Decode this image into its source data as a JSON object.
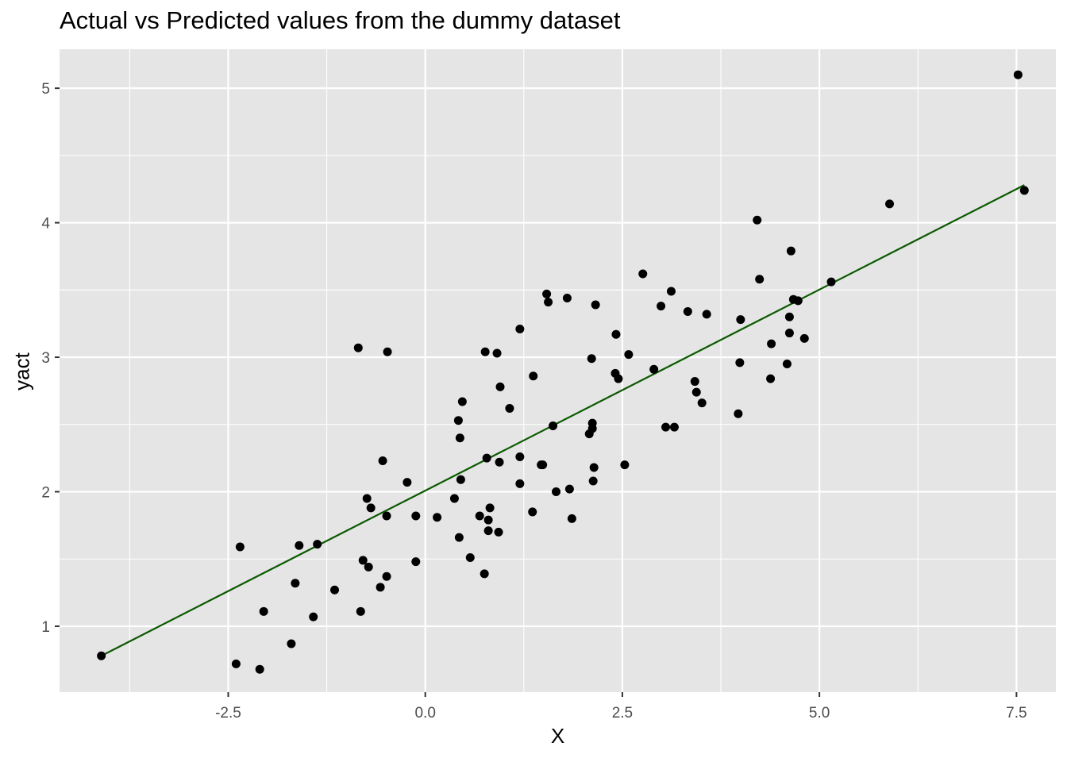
{
  "chart_data": {
    "type": "scatter",
    "title": "Actual vs Predicted values from the dummy dataset",
    "xlabel": "X",
    "ylabel": "yact",
    "xlim": [
      -4.64,
      8.0
    ],
    "ylim": [
      0.51,
      5.29
    ],
    "x_ticks": [
      -2.5,
      0.0,
      2.5,
      5.0,
      7.5
    ],
    "x_tick_labels": [
      "-2.5",
      "0.0",
      "2.5",
      "5.0",
      "7.5"
    ],
    "y_ticks": [
      1,
      2,
      3,
      4,
      5
    ],
    "y_tick_labels": [
      "1",
      "2",
      "3",
      "4",
      "5"
    ],
    "grid": true,
    "legend": "none",
    "colors": {
      "panel_background": "#e5e5e5",
      "grid": "#ffffff",
      "points": "#000000",
      "fit_line": "#0b5a00"
    },
    "series": [
      {
        "type": "scatter",
        "points": [
          [
            -4.11,
            0.78
          ],
          [
            -2.35,
            1.59
          ],
          [
            -2.4,
            0.72
          ],
          [
            -2.1,
            0.68
          ],
          [
            -2.05,
            1.11
          ],
          [
            -1.7,
            0.87
          ],
          [
            -1.65,
            1.32
          ],
          [
            -1.6,
            1.6
          ],
          [
            -1.42,
            1.07
          ],
          [
            -1.37,
            1.61
          ],
          [
            -1.15,
            1.27
          ],
          [
            -0.85,
            3.07
          ],
          [
            -0.82,
            1.11
          ],
          [
            -0.79,
            1.49
          ],
          [
            -0.74,
            1.95
          ],
          [
            -0.72,
            1.44
          ],
          [
            -0.69,
            1.88
          ],
          [
            -0.57,
            1.29
          ],
          [
            -0.54,
            2.23
          ],
          [
            -0.49,
            1.37
          ],
          [
            -0.49,
            1.82
          ],
          [
            -0.48,
            3.04
          ],
          [
            -0.23,
            2.07
          ],
          [
            -0.12,
            1.82
          ],
          [
            -0.12,
            1.48
          ],
          [
            0.15,
            1.81
          ],
          [
            0.37,
            1.95
          ],
          [
            0.42,
            2.53
          ],
          [
            0.43,
            1.66
          ],
          [
            0.44,
            2.4
          ],
          [
            0.45,
            2.09
          ],
          [
            0.47,
            2.67
          ],
          [
            0.57,
            1.51
          ],
          [
            0.69,
            1.82
          ],
          [
            0.75,
            1.39
          ],
          [
            0.76,
            3.04
          ],
          [
            0.78,
            2.25
          ],
          [
            0.8,
            1.79
          ],
          [
            0.8,
            1.71
          ],
          [
            0.82,
            1.88
          ],
          [
            0.91,
            3.03
          ],
          [
            0.93,
            1.7
          ],
          [
            0.94,
            2.22
          ],
          [
            0.95,
            2.78
          ],
          [
            1.07,
            2.62
          ],
          [
            1.2,
            3.21
          ],
          [
            1.2,
            2.26
          ],
          [
            1.2,
            2.06
          ],
          [
            1.36,
            1.85
          ],
          [
            1.37,
            2.86
          ],
          [
            1.47,
            2.2
          ],
          [
            1.49,
            2.2
          ],
          [
            1.54,
            3.47
          ],
          [
            1.56,
            3.41
          ],
          [
            1.62,
            2.49
          ],
          [
            1.66,
            2.0
          ],
          [
            1.8,
            3.44
          ],
          [
            1.83,
            2.02
          ],
          [
            1.86,
            1.8
          ],
          [
            2.08,
            2.43
          ],
          [
            2.11,
            2.99
          ],
          [
            2.12,
            2.47
          ],
          [
            2.12,
            2.51
          ],
          [
            2.13,
            2.08
          ],
          [
            2.14,
            2.18
          ],
          [
            2.16,
            3.39
          ],
          [
            2.41,
            2.88
          ],
          [
            2.42,
            3.17
          ],
          [
            2.45,
            2.84
          ],
          [
            2.53,
            2.2
          ],
          [
            2.58,
            3.02
          ],
          [
            2.76,
            3.62
          ],
          [
            2.9,
            2.91
          ],
          [
            2.99,
            3.38
          ],
          [
            3.05,
            2.48
          ],
          [
            3.12,
            3.49
          ],
          [
            3.16,
            2.48
          ],
          [
            3.33,
            3.34
          ],
          [
            3.42,
            2.82
          ],
          [
            3.44,
            2.74
          ],
          [
            3.51,
            2.66
          ],
          [
            3.57,
            3.32
          ],
          [
            3.97,
            2.58
          ],
          [
            3.99,
            2.96
          ],
          [
            4.0,
            3.28
          ],
          [
            4.21,
            4.02
          ],
          [
            4.24,
            3.58
          ],
          [
            4.38,
            2.84
          ],
          [
            4.39,
            3.1
          ],
          [
            4.59,
            2.95
          ],
          [
            4.62,
            3.3
          ],
          [
            4.62,
            3.18
          ],
          [
            4.64,
            3.79
          ],
          [
            4.67,
            3.43
          ],
          [
            4.73,
            3.42
          ],
          [
            4.81,
            3.14
          ],
          [
            5.15,
            3.56
          ],
          [
            5.89,
            4.14
          ],
          [
            7.52,
            5.1
          ],
          [
            7.6,
            4.24
          ]
        ]
      },
      {
        "type": "line",
        "points": [
          [
            -4.11,
            0.78
          ],
          [
            7.6,
            4.28
          ]
        ]
      }
    ]
  }
}
